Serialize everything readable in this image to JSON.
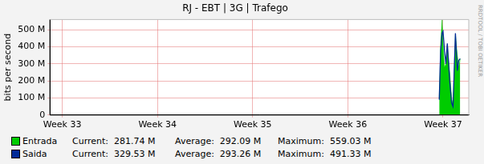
{
  "chart_data": {
    "type": "line",
    "title": "RJ - EBT | 3G | Trafego",
    "y_label": "bits per second",
    "x": [
      36.96,
      36.975,
      36.99,
      37.0,
      37.015,
      37.03,
      37.045,
      37.07,
      37.09,
      37.105,
      37.13,
      37.15,
      37.165,
      37.18
    ],
    "xlim": [
      32.87,
      37.27
    ],
    "xticks": [
      {
        "value": 33,
        "label": "Week 33"
      },
      {
        "value": 34,
        "label": "Week 34"
      },
      {
        "value": 35,
        "label": "Week 35"
      },
      {
        "value": 36,
        "label": "Week 36"
      },
      {
        "value": 37,
        "label": "Week 37"
      }
    ],
    "ylim": [
      0,
      560
    ],
    "yticks": [
      0,
      {
        "value": 100,
        "label": "100 M"
      },
      {
        "value": 200,
        "label": "200 M"
      },
      {
        "value": 300,
        "label": "300 M"
      },
      {
        "value": 400,
        "label": "400 M"
      },
      {
        "value": 500,
        "label": "500 M"
      }
    ],
    "grid": true,
    "legend": "bottom",
    "side_text": "RRDTOOL / TOBI OETIKER",
    "series": [
      {
        "name": "Entrada",
        "type": "area",
        "color": "#00cc00",
        "values": [
          100,
          420,
          559,
          420,
          280,
          300,
          410,
          250,
          100,
          60,
          470,
          350,
          280,
          330
        ],
        "stats": [
          {
            "label": "Current:",
            "value": 281.74,
            "value_label": "281.74 M"
          },
          {
            "label": "Average:",
            "value": 292.09,
            "value_label": "292.09 M"
          },
          {
            "label": "Maximum:",
            "value": 559.03,
            "value_label": "559.03 M"
          }
        ]
      },
      {
        "name": "Saida",
        "type": "line",
        "color": "#002a97",
        "values": [
          90,
          380,
          480,
          491,
          380,
          300,
          420,
          200,
          70,
          50,
          480,
          260,
          320,
          330
        ],
        "stats": [
          {
            "label": "Current:",
            "value": 329.53,
            "value_label": "329.53 M"
          },
          {
            "label": "Average:",
            "value": 293.26,
            "value_label": "293.26 M"
          },
          {
            "label": "Maximum:",
            "value": 491.33,
            "value_label": "491.33 M"
          }
        ]
      }
    ]
  }
}
